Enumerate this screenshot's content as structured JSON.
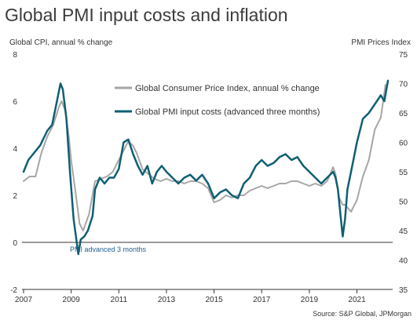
{
  "chart_data": {
    "type": "line",
    "title": "Global PMI input costs and inflation",
    "left_axis_label": "Global CPI, annual % change",
    "right_axis_label": "PMI Prices Index",
    "left_ylim": [
      -2,
      8
    ],
    "right_ylim": [
      35,
      75
    ],
    "left_ticks": [
      "-2",
      "0",
      "2",
      "4",
      "6",
      "8"
    ],
    "right_ticks": [
      "35",
      "40",
      "45",
      "50",
      "55",
      "60",
      "65",
      "70",
      "75"
    ],
    "x_ticks": [
      "2007",
      "2009",
      "2011",
      "2013",
      "2015",
      "2017",
      "2019",
      "2021"
    ],
    "xlim": [
      2007,
      2022.4
    ],
    "grid": false,
    "legend_position": "top-center",
    "annotation": "PMI advanced 3 months",
    "source": "Source: S&P Global, JPMorgan",
    "series": [
      {
        "name": "Global Consumer Price Index, annual % change",
        "axis": "left",
        "color": "#a6a6a6",
        "x": [
          2007.0,
          2007.25,
          2007.5,
          2007.75,
          2008.0,
          2008.25,
          2008.5,
          2008.6,
          2008.75,
          2008.9,
          2009.0,
          2009.2,
          2009.35,
          2009.5,
          2009.75,
          2010.0,
          2010.25,
          2010.5,
          2010.75,
          2011.0,
          2011.25,
          2011.4,
          2011.6,
          2011.75,
          2012.0,
          2012.25,
          2012.5,
          2012.75,
          2013.0,
          2013.25,
          2013.5,
          2013.75,
          2014.0,
          2014.25,
          2014.5,
          2014.75,
          2015.0,
          2015.25,
          2015.5,
          2015.75,
          2016.0,
          2016.25,
          2016.5,
          2016.75,
          2017.0,
          2017.25,
          2017.5,
          2017.75,
          2018.0,
          2018.25,
          2018.5,
          2018.75,
          2019.0,
          2019.25,
          2019.5,
          2019.75,
          2020.0,
          2020.1,
          2020.25,
          2020.4,
          2020.5,
          2020.75,
          2021.0,
          2021.25,
          2021.5,
          2021.75,
          2022.0,
          2022.2
        ],
        "values": [
          2.6,
          2.8,
          2.8,
          3.8,
          4.5,
          5.0,
          5.8,
          6.0,
          5.6,
          4.5,
          3.5,
          2.0,
          0.8,
          0.5,
          1.2,
          2.6,
          2.7,
          2.8,
          3.0,
          3.5,
          4.0,
          4.3,
          4.1,
          3.8,
          3.1,
          2.9,
          2.7,
          2.6,
          2.7,
          2.6,
          2.6,
          2.5,
          2.6,
          2.6,
          2.5,
          2.3,
          1.7,
          1.8,
          2.0,
          1.9,
          2.0,
          2.0,
          2.2,
          2.3,
          2.4,
          2.3,
          2.4,
          2.5,
          2.5,
          2.6,
          2.6,
          2.5,
          2.4,
          2.5,
          2.4,
          2.6,
          3.2,
          2.9,
          1.9,
          1.6,
          1.6,
          1.3,
          1.8,
          2.8,
          3.5,
          4.8,
          5.3,
          6.7
        ]
      },
      {
        "name": "Global PMI input costs (advanced three months)",
        "axis": "right",
        "color": "#0f5f73",
        "x": [
          2007.0,
          2007.2,
          2007.4,
          2007.7,
          2008.0,
          2008.2,
          2008.4,
          2008.55,
          2008.65,
          2008.8,
          2008.95,
          2009.1,
          2009.3,
          2009.4,
          2009.55,
          2009.7,
          2009.9,
          2010.0,
          2010.2,
          2010.4,
          2010.6,
          2010.8,
          2011.0,
          2011.2,
          2011.4,
          2011.6,
          2011.8,
          2012.0,
          2012.2,
          2012.4,
          2012.6,
          2012.8,
          2013.0,
          2013.25,
          2013.5,
          2013.75,
          2014.0,
          2014.25,
          2014.5,
          2014.75,
          2015.0,
          2015.25,
          2015.5,
          2015.75,
          2016.0,
          2016.25,
          2016.5,
          2016.75,
          2017.0,
          2017.25,
          2017.5,
          2017.75,
          2018.0,
          2018.25,
          2018.5,
          2018.75,
          2019.0,
          2019.25,
          2019.5,
          2019.75,
          2020.0,
          2020.1,
          2020.2,
          2020.3,
          2020.4,
          2020.5,
          2020.6,
          2020.75,
          2021.0,
          2021.25,
          2021.5,
          2021.75,
          2022.0,
          2022.15,
          2022.3
        ],
        "values": [
          55.0,
          57.0,
          58.0,
          59.5,
          62.0,
          63.0,
          67.0,
          70.0,
          69.0,
          64.0,
          55.0,
          47.0,
          41.0,
          43.5,
          44.0,
          45.0,
          47.5,
          52.0,
          54.0,
          53.0,
          54.0,
          54.0,
          55.5,
          60.0,
          60.5,
          58.0,
          56.0,
          54.5,
          56.0,
          53.0,
          55.0,
          56.0,
          55.0,
          54.0,
          53.0,
          54.0,
          54.5,
          53.5,
          54.5,
          53.0,
          50.5,
          51.5,
          52.0,
          51.0,
          50.5,
          53.0,
          54.0,
          56.0,
          57.0,
          56.0,
          56.5,
          57.5,
          58.0,
          57.0,
          57.5,
          56.0,
          55.0,
          54.0,
          53.0,
          54.0,
          55.0,
          54.0,
          52.0,
          48.0,
          44.0,
          47.0,
          52.0,
          55.0,
          60.0,
          64.0,
          65.0,
          66.5,
          68.0,
          67.0,
          70.5
        ]
      }
    ]
  }
}
